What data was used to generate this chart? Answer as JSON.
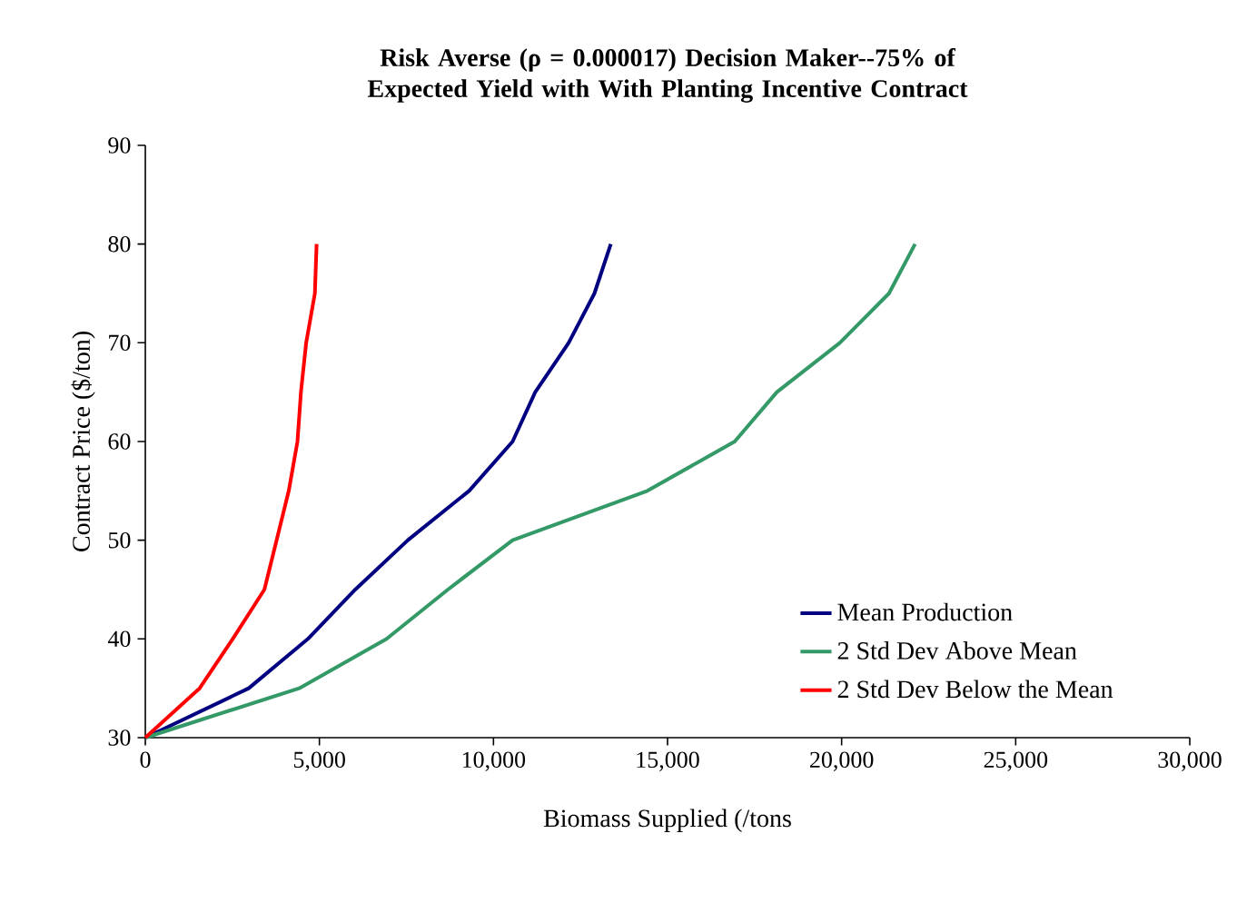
{
  "chart_data": {
    "type": "line",
    "title": "Risk Averse (ρ = 0.000017) Decision Maker--75% of Expected Yield with With Planting Incentive Contract",
    "xlabel": "Biomass Supplied (/tons",
    "ylabel": "Contract Price ($/ton)",
    "xlim": [
      0,
      30000
    ],
    "ylim": [
      30,
      90
    ],
    "xticks": [
      {
        "value": 0,
        "label": "0"
      },
      {
        "value": 5000,
        "label": "5,000"
      },
      {
        "value": 10000,
        "label": "10,000"
      },
      {
        "value": 15000,
        "label": "15,000"
      },
      {
        "value": 20000,
        "label": "20,000"
      },
      {
        "value": 25000,
        "label": "25,000"
      },
      {
        "value": 30000,
        "label": "30,000"
      }
    ],
    "yticks": [
      30,
      40,
      50,
      60,
      70,
      80,
      90
    ],
    "grid": false,
    "legend": "bottom right",
    "marker": "none",
    "line_style": "solid",
    "series": [
      {
        "name": "Mean Production",
        "color": "#000080",
        "x": [
          0,
          2970,
          4670,
          6030,
          7540,
          9300,
          10550,
          11200,
          12160,
          12900,
          13370
        ],
        "values": [
          30,
          35,
          40,
          45,
          50,
          55,
          60,
          65,
          70,
          75,
          80
        ]
      },
      {
        "name": "2 Std Dev Above Mean",
        "color": "#339966",
        "x": [
          0,
          4420,
          6930,
          8690,
          10550,
          14420,
          16930,
          18140,
          19950,
          21360,
          22110
        ],
        "values": [
          30,
          35,
          40,
          45,
          50,
          55,
          60,
          65,
          70,
          75,
          80
        ]
      },
      {
        "name": "2 Std Dev Below the Mean",
        "color": "#ff0000",
        "x": [
          0,
          1560,
          2510,
          3420,
          3770,
          4120,
          4370,
          4470,
          4620,
          4870,
          4920
        ],
        "values": [
          30,
          35,
          40,
          45,
          50,
          55,
          60,
          65,
          70,
          75,
          80
        ]
      }
    ]
  }
}
